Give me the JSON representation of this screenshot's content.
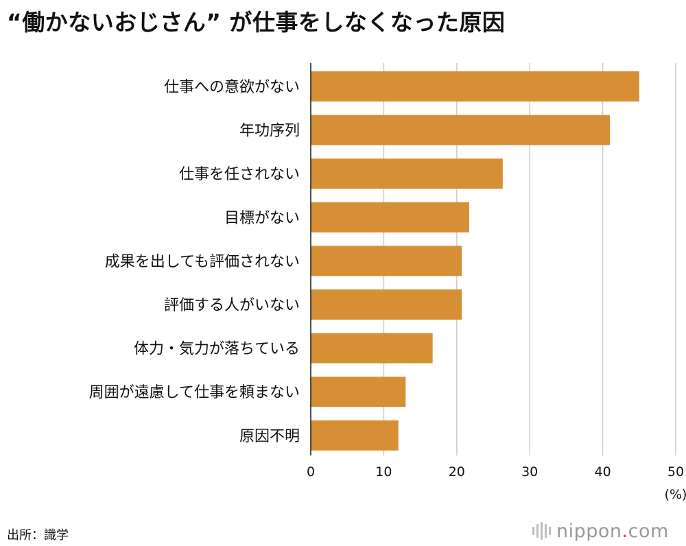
{
  "chart_data": {
    "type": "bar",
    "orientation": "horizontal",
    "title": "“働かないおじさん” が仕事をしなくなった原因",
    "categories": [
      "仕事への意欲がない",
      "年功序列",
      "仕事を任されない",
      "目標がない",
      "成果を出しても評価されない",
      "評価する人がいない",
      "体力・気力が落ちている",
      "周囲が遠慮して仕事を頼まない",
      "原因不明"
    ],
    "values": [
      45,
      41,
      26.3,
      21.7,
      20.7,
      20.7,
      16.7,
      13,
      12
    ],
    "xlim": [
      0,
      50
    ],
    "xticks": [
      "0",
      "10",
      "20",
      "30",
      "40",
      "50"
    ],
    "xlabel": "(%)",
    "grid": true,
    "bar_color": "#d68f35",
    "grid_color": "#cccccc"
  },
  "footer": {
    "source": "出所：識学",
    "brand_name": "nippon",
    "brand_dot": ".",
    "brand_tld": "com"
  }
}
